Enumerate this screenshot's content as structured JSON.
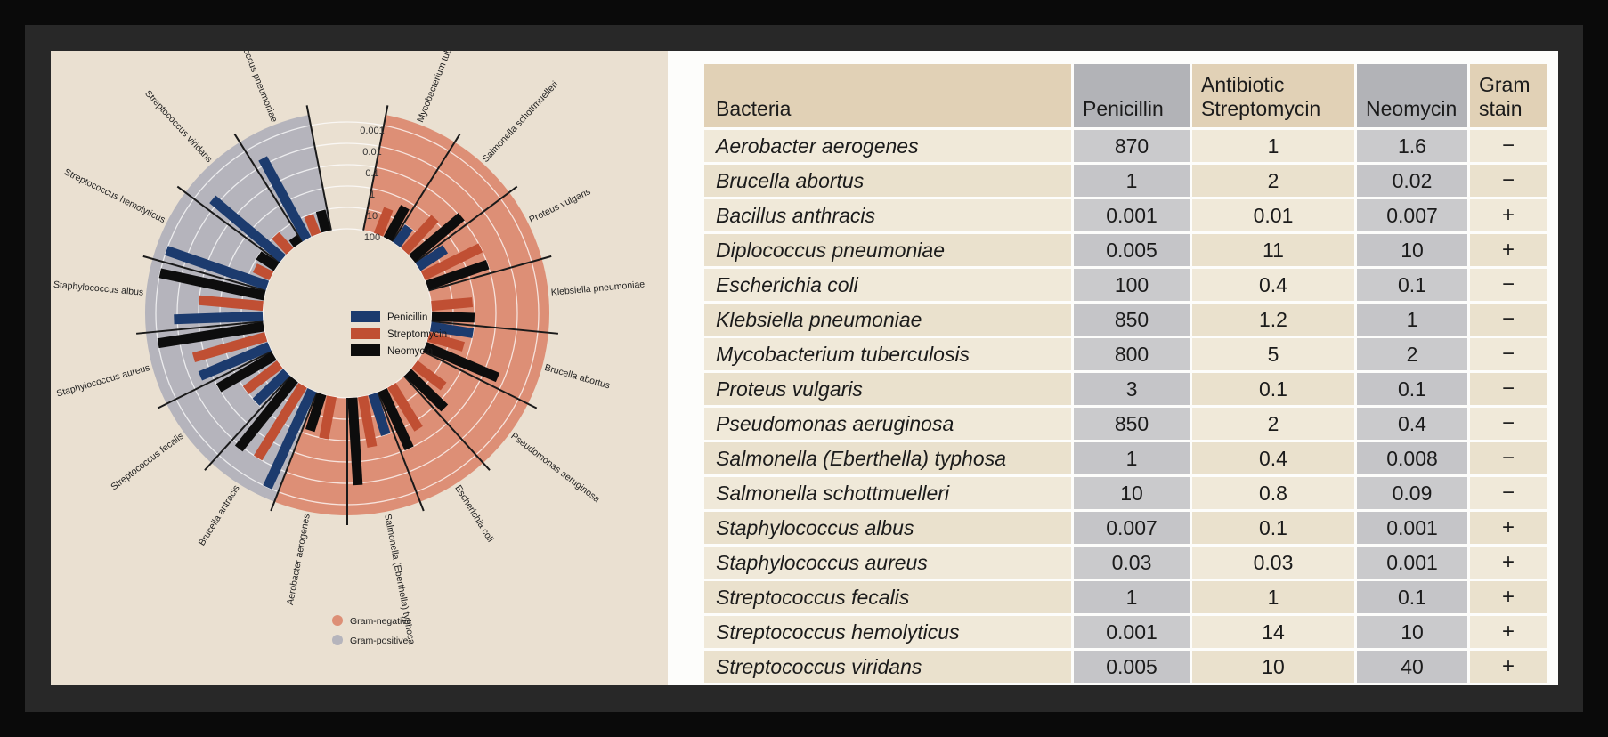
{
  "colors": {
    "outer_bg": "#0a0a0a",
    "frame_bg": "#282828",
    "chart_panel_bg": "#EAE0D1",
    "table_panel_bg": "#FDFDFB",
    "gram_negative": "#DD8F76",
    "gram_positive": "#B5B4BC",
    "penicillin": "#1C3B6E",
    "streptomycin": "#C04F33",
    "neomycin": "#0D0D0D",
    "sector_line": "#1a1a1a",
    "grid_ring": "#ffffff",
    "label_text": "#222222"
  },
  "chart_panel": {
    "scale_ticks": [
      "0.001",
      "0.01",
      "0.1",
      "1",
      "10",
      "100"
    ],
    "antibiotic_legend": [
      {
        "label": "Penicillin",
        "color": "#1C3B6E"
      },
      {
        "label": "Streptomycin",
        "color": "#C04F33"
      },
      {
        "label": "Neomycin",
        "color": "#0D0D0D"
      }
    ],
    "gram_legend": [
      {
        "label": "Gram-negative",
        "color": "#DD8F76"
      },
      {
        "label": "Gram-positive",
        "color": "#B5B4BC"
      }
    ]
  },
  "chart_data": {
    "type": "radial-bar",
    "scale": {
      "kind": "log-inverted-radial",
      "rings": [
        0.001,
        0.01,
        0.1,
        1,
        10,
        100
      ],
      "outer_value": 0.001,
      "inner_value": 100
    },
    "series": [
      "Penicillin",
      "Streptomycin",
      "Neomycin"
    ],
    "sector_order": "clockwise-from-top-gap",
    "bacteria": [
      {
        "label": "Mycobacterium tuberculosis",
        "gram": "negative",
        "values": {
          "Penicillin": 800,
          "Streptomycin": 5,
          "Neomycin": 2
        }
      },
      {
        "label": "Salmonella schottmuelleri",
        "gram": "negative",
        "values": {
          "Penicillin": 10,
          "Streptomycin": 0.8,
          "Neomycin": 0.09
        }
      },
      {
        "label": "Proteus vulgaris",
        "gram": "negative",
        "values": {
          "Penicillin": 3,
          "Streptomycin": 0.1,
          "Neomycin": 0.1
        }
      },
      {
        "label": "Klebsiella pneumoniae",
        "gram": "negative",
        "values": {
          "Penicillin": 850,
          "Streptomycin": 1.2,
          "Neomycin": 1
        }
      },
      {
        "label": "Brucella abortus",
        "gram": "negative",
        "values": {
          "Penicillin": 1,
          "Streptomycin": 2,
          "Neomycin": 0.02
        }
      },
      {
        "label": "Pseudomonas aeruginosa",
        "gram": "negative",
        "values": {
          "Penicillin": 850,
          "Streptomycin": 2,
          "Neomycin": 0.4
        }
      },
      {
        "label": "Escherichia coli",
        "gram": "negative",
        "values": {
          "Penicillin": 100,
          "Streptomycin": 0.4,
          "Neomycin": 0.1
        }
      },
      {
        "label": "Salmonella (Eberthella) typhosa",
        "gram": "negative",
        "values": {
          "Penicillin": 1,
          "Streptomycin": 0.4,
          "Neomycin": 0.008
        }
      },
      {
        "label": "Aerobacter aerogenes",
        "gram": "negative",
        "values": {
          "Penicillin": 870,
          "Streptomycin": 1,
          "Neomycin": 1.6
        }
      },
      {
        "label": "Brucella antracis",
        "gram": "positive",
        "values": {
          "Penicillin": 0.001,
          "Streptomycin": 0.01,
          "Neomycin": 0.007
        }
      },
      {
        "label": "Streptococcus fecalis",
        "gram": "positive",
        "values": {
          "Penicillin": 1,
          "Streptomycin": 1,
          "Neomycin": 0.1
        }
      },
      {
        "label": "Staphylococcus aureus",
        "gram": "positive",
        "values": {
          "Penicillin": 0.03,
          "Streptomycin": 0.03,
          "Neomycin": 0.001
        }
      },
      {
        "label": "Staphylococcus albus",
        "gram": "positive",
        "values": {
          "Penicillin": 0.007,
          "Streptomycin": 0.1,
          "Neomycin": 0.001
        }
      },
      {
        "label": "Streptococcus hemolyticus",
        "gram": "positive",
        "values": {
          "Penicillin": 0.001,
          "Streptomycin": 14,
          "Neomycin": 10
        }
      },
      {
        "label": "Streptococcus viridans",
        "gram": "positive",
        "values": {
          "Penicillin": 0.005,
          "Streptomycin": 10,
          "Neomycin": 40
        }
      },
      {
        "label": "Diplococcus pneumoniae",
        "gram": "positive",
        "values": {
          "Penicillin": 0.005,
          "Streptomycin": 11,
          "Neomycin": 10
        }
      }
    ]
  },
  "table": {
    "headers": [
      {
        "lines": [
          "Bacteria"
        ]
      },
      {
        "lines": [
          "Penicillin"
        ]
      },
      {
        "lines": [
          "Antibiotic",
          "Streptomycin"
        ]
      },
      {
        "lines": [
          "Neomycin"
        ]
      },
      {
        "lines": [
          "Gram",
          "stain"
        ]
      }
    ],
    "rows": [
      {
        "bacteria": "Aerobacter aerogenes",
        "penicillin": "870",
        "streptomycin": "1",
        "neomycin": "1.6",
        "gram": "−"
      },
      {
        "bacteria": "Brucella abortus",
        "penicillin": "1",
        "streptomycin": "2",
        "neomycin": "0.02",
        "gram": "−"
      },
      {
        "bacteria": "Bacillus anthracis",
        "penicillin": "0.001",
        "streptomycin": "0.01",
        "neomycin": "0.007",
        "gram": "+"
      },
      {
        "bacteria": "Diplococcus pneumoniae",
        "penicillin": "0.005",
        "streptomycin": "11",
        "neomycin": "10",
        "gram": "+"
      },
      {
        "bacteria": "Escherichia coli",
        "penicillin": "100",
        "streptomycin": "0.4",
        "neomycin": "0.1",
        "gram": "−"
      },
      {
        "bacteria": "Klebsiella pneumoniae",
        "penicillin": "850",
        "streptomycin": "1.2",
        "neomycin": "1",
        "gram": "−"
      },
      {
        "bacteria": "Mycobacterium tuberculosis",
        "penicillin": "800",
        "streptomycin": "5",
        "neomycin": "2",
        "gram": "−"
      },
      {
        "bacteria": "Proteus vulgaris",
        "penicillin": "3",
        "streptomycin": "0.1",
        "neomycin": "0.1",
        "gram": "−"
      },
      {
        "bacteria": "Pseudomonas aeruginosa",
        "penicillin": "850",
        "streptomycin": "2",
        "neomycin": "0.4",
        "gram": "−"
      },
      {
        "bacteria": "Salmonella (Eberthella) typhosa",
        "penicillin": "1",
        "streptomycin": "0.4",
        "neomycin": "0.008",
        "gram": "−"
      },
      {
        "bacteria": "Salmonella schottmuelleri",
        "penicillin": "10",
        "streptomycin": "0.8",
        "neomycin": "0.09",
        "gram": "−"
      },
      {
        "bacteria": "Staphylococcus albus",
        "penicillin": "0.007",
        "streptomycin": "0.1",
        "neomycin": "0.001",
        "gram": "+"
      },
      {
        "bacteria": "Staphylococcus aureus",
        "penicillin": "0.03",
        "streptomycin": "0.03",
        "neomycin": "0.001",
        "gram": "+"
      },
      {
        "bacteria": "Streptococcus fecalis",
        "penicillin": "1",
        "streptomycin": "1",
        "neomycin": "0.1",
        "gram": "+"
      },
      {
        "bacteria": "Streptococcus hemolyticus",
        "penicillin": "0.001",
        "streptomycin": "14",
        "neomycin": "10",
        "gram": "+"
      },
      {
        "bacteria": "Streptococcus viridans",
        "penicillin": "0.005",
        "streptomycin": "10",
        "neomycin": "40",
        "gram": "+"
      }
    ]
  }
}
